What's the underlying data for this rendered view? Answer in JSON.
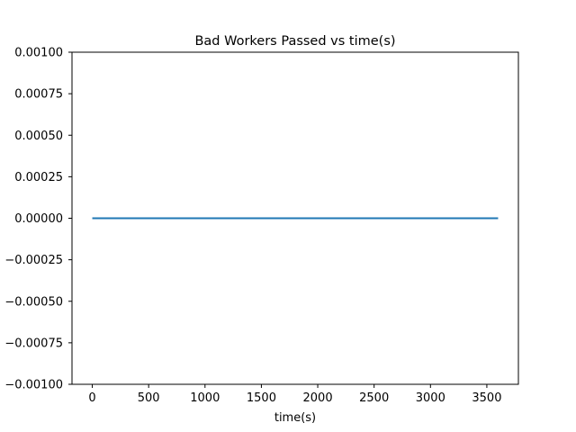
{
  "chart_data": {
    "type": "line",
    "title": "Bad Workers Passed vs time(s)",
    "xlabel": "time(s)",
    "ylabel": "",
    "xlim": [
      -180,
      3780
    ],
    "ylim": [
      -0.001,
      0.001
    ],
    "x_ticks": [
      0,
      500,
      1000,
      1500,
      2000,
      2500,
      3000,
      3500
    ],
    "x_tick_labels": [
      "0",
      "500",
      "1000",
      "1500",
      "2000",
      "2500",
      "3000",
      "3500"
    ],
    "y_ticks": [
      0.001,
      0.00075,
      0.0005,
      0.00025,
      0,
      -0.00025,
      -0.0005,
      -0.00075,
      -0.001
    ],
    "y_tick_labels": [
      "0.00100",
      "0.00075",
      "0.00050",
      "0.00025",
      "0.00000",
      "−0.00025",
      "−0.00050",
      "−0.00075",
      "−0.00100"
    ],
    "grid": false,
    "series": [
      {
        "color": "#1f77b4",
        "x": [
          0,
          3600
        ],
        "y": [
          0,
          0
        ]
      }
    ]
  }
}
